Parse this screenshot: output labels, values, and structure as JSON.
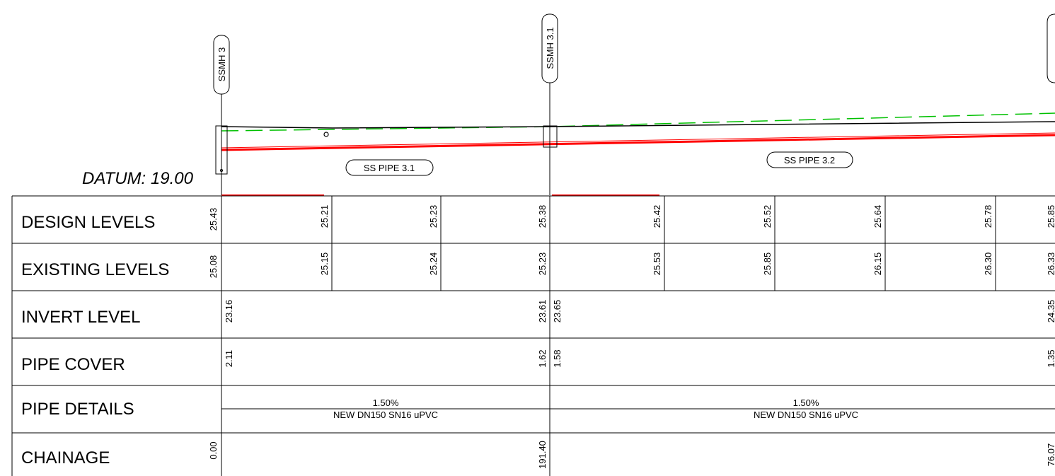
{
  "datum": "DATUM: 19.00",
  "manholes": [
    {
      "id": "mh3",
      "label": "SSMH 3"
    },
    {
      "id": "mh31",
      "label": "SSMH 3.1"
    }
  ],
  "pipes": [
    {
      "id": "pipe31",
      "label": "SS PIPE 3.1"
    },
    {
      "id": "pipe32",
      "label": "SS PIPE 3.2"
    }
  ],
  "rows": {
    "design": "DESIGN LEVELS",
    "existing": "EXISTING LEVELS",
    "invert": "INVERT LEVEL",
    "cover": "PIPE COVER",
    "details": "PIPE DETAILS",
    "chainage": "CHAINAGE"
  },
  "design_levels": [
    "25.43",
    "25.21",
    "25.23",
    "25.38",
    "25.42",
    "25.52",
    "25.64",
    "25.78",
    "25.85"
  ],
  "existing_levels": [
    "25.08",
    "25.15",
    "25.24",
    "25.23",
    "25.53",
    "25.85",
    "26.15",
    "26.30",
    "26.33"
  ],
  "invert_levels": [
    "23.16",
    "23.61",
    "23.65",
    "24.35"
  ],
  "pipe_cover": [
    "2.11",
    "1.62",
    "1.58",
    "1.35"
  ],
  "pipe_details": [
    {
      "grade": "1.50%",
      "spec": "NEW DN150 SN16 uPVC"
    },
    {
      "grade": "1.50%",
      "spec": "NEW DN150 SN16 uPVC"
    }
  ],
  "chainage": [
    "0.00",
    "191.40",
    "76.07"
  ],
  "colors": {
    "pipe": "#ff0000",
    "design_surface": "#000000",
    "existing_surface": "#00c000",
    "linework": "#000000"
  }
}
